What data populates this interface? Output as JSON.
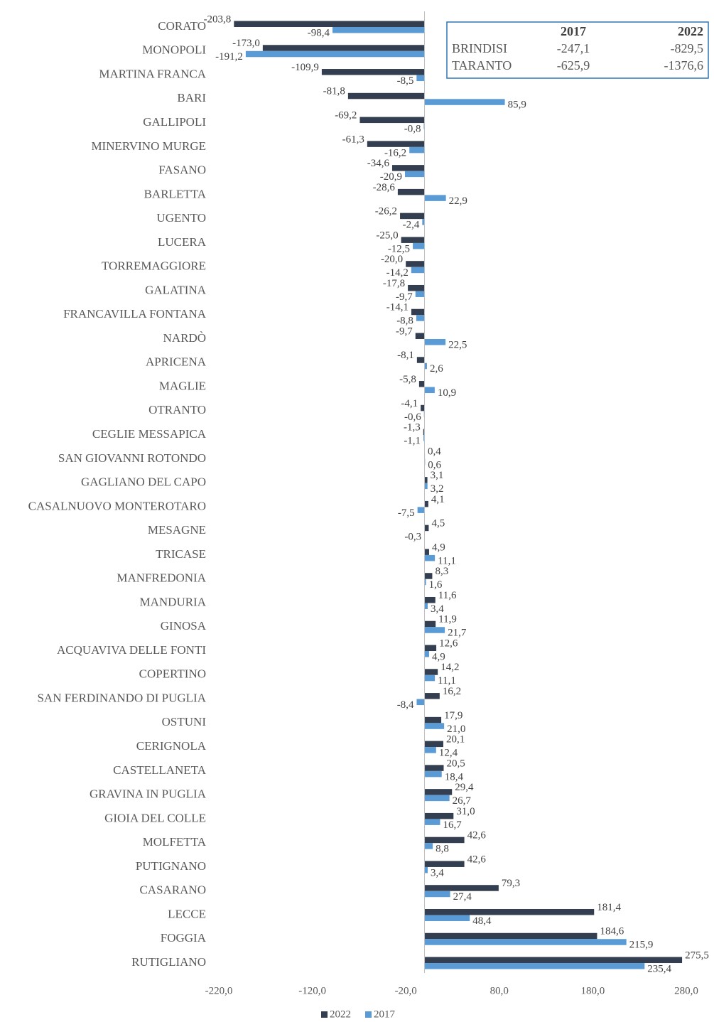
{
  "chart_data": {
    "type": "hbar",
    "categories": [
      "CORATO",
      "MONOPOLI",
      "MARTINA FRANCA",
      "BARI",
      "GALLIPOLI",
      "MINERVINO MURGE",
      "FASANO",
      "BARLETTA",
      "UGENTO",
      "LUCERA",
      "TORREMAGGIORE",
      "GALATINA",
      "FRANCAVILLA FONTANA",
      "NARDÒ",
      "APRICENA",
      "MAGLIE",
      "OTRANTO",
      "CEGLIE MESSAPICA",
      "SAN GIOVANNI ROTONDO",
      "GAGLIANO DEL CAPO",
      "CASALNUOVO MONTEROTARO",
      "MESAGNE",
      "TRICASE",
      "MANFREDONIA",
      "MANDURIA",
      "GINOSA",
      "ACQUAVIVA DELLE FONTI",
      "COPERTINO",
      "SAN FERDINANDO DI PUGLIA",
      "OSTUNI",
      "CERIGNOLA",
      "CASTELLANETA",
      "GRAVINA IN PUGLIA",
      "GIOIA DEL COLLE",
      "MOLFETTA",
      "PUTIGNANO",
      "CASARANO",
      "LECCE",
      "FOGGIA",
      "RUTIGLIANO"
    ],
    "series": [
      {
        "name": "2022",
        "color": "#333f50",
        "values": [
          -203.8,
          -173.0,
          -109.9,
          -81.8,
          -69.2,
          -61.3,
          -34.6,
          -28.6,
          -26.2,
          -25.0,
          -20.0,
          -17.8,
          -14.1,
          -9.7,
          -8.1,
          -5.8,
          -4.1,
          -1.3,
          0.4,
          3.1,
          4.1,
          4.5,
          4.9,
          8.3,
          11.6,
          11.9,
          12.6,
          14.2,
          16.2,
          17.9,
          20.1,
          20.5,
          29.4,
          31.0,
          42.6,
          42.6,
          79.3,
          181.4,
          184.6,
          275.5
        ],
        "value_labels": [
          "-203,8",
          "-173,0",
          "-109,9",
          "-81,8",
          "-69,2",
          "-61,3",
          "-34,6",
          "-28,6",
          "-26,2",
          "-25,0",
          "-20,0",
          "-17,8",
          "-14,1",
          "-9,7",
          "-8,1",
          "-5,8",
          "-4,1",
          "-1,3",
          "0,4",
          "3,1",
          "4,1",
          "4,5",
          "4,9",
          "8,3",
          "11,6",
          "11,9",
          "12,6",
          "14,2",
          "16,2",
          "17,9",
          "20,1",
          "20,5",
          "29,4",
          "31,0",
          "42,6",
          "42,6",
          "79,3",
          "181,4",
          "184,6",
          "275,5"
        ]
      },
      {
        "name": "2017",
        "color": "#5b9bd5",
        "values": [
          -98.4,
          -191.2,
          -8.5,
          85.9,
          -0.8,
          -16.2,
          -20.9,
          22.9,
          -2.4,
          -12.5,
          -14.2,
          -9.7,
          -8.8,
          22.5,
          2.6,
          10.9,
          -0.6,
          -1.1,
          0.6,
          3.2,
          -7.5,
          -0.3,
          11.1,
          1.6,
          3.4,
          21.7,
          4.9,
          11.1,
          -8.4,
          21.0,
          12.4,
          18.4,
          26.7,
          16.7,
          8.8,
          3.4,
          27.4,
          48.4,
          215.9,
          235.4
        ],
        "value_labels": [
          "-98,4",
          "-191,2",
          "-8,5",
          "85,9",
          "-0,8",
          "-16,2",
          "-20,9",
          "22,9",
          "-2,4",
          "-12,5",
          "-14,2",
          "-9,7",
          "-8,8",
          "22,5",
          "2,6",
          "10,9",
          "-0,6",
          "-1,1",
          "0,6",
          "3,2",
          "-7,5",
          "-0,3",
          "11,1",
          "1,6",
          "3,4",
          "21,7",
          "4,9",
          "11,1",
          "-8,4",
          "21,0",
          "12,4",
          "18,4",
          "26,7",
          "16,7",
          "8,8",
          "3,4",
          "27,4",
          "48,4",
          "215,9",
          "235,4"
        ]
      }
    ],
    "xlim": [
      -220,
      280
    ],
    "xticks": [
      {
        "value": -220,
        "label": "-220,0"
      },
      {
        "value": -120,
        "label": "-120,0"
      },
      {
        "value": -20,
        "label": "-20,0"
      },
      {
        "value": 80,
        "label": "80,0"
      },
      {
        "value": 180,
        "label": "180,0"
      },
      {
        "value": 280,
        "label": "280,0"
      }
    ],
    "grid": false,
    "legend": "bottom",
    "inset_table": {
      "columns": [
        "2017",
        "2022"
      ],
      "rows": [
        {
          "label": "BRINDISI",
          "cells": [
            "-247,1",
            "-829,5"
          ]
        },
        {
          "label": "TARANTO",
          "cells": [
            "-625,9",
            "-1376,6"
          ]
        }
      ]
    }
  }
}
